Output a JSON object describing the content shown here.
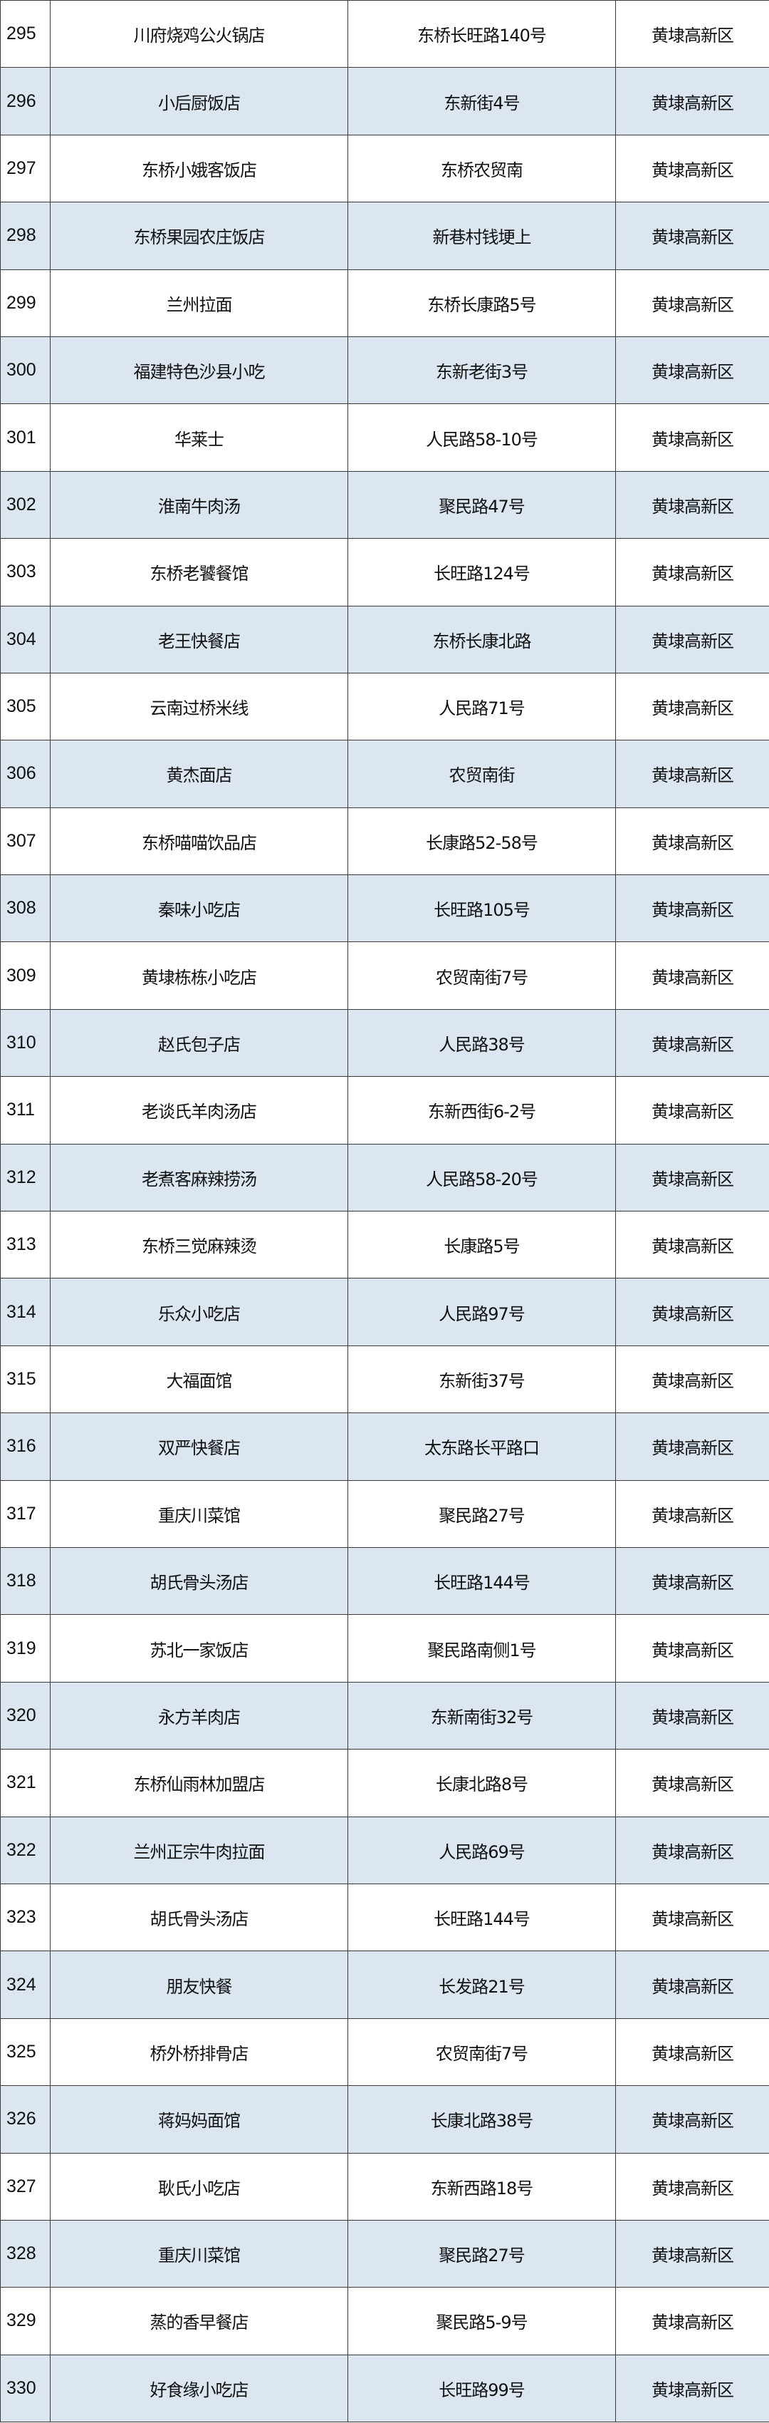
{
  "colors": {
    "stripe": "#dce6f1",
    "border": "#3a3a3a"
  },
  "rows": [
    {
      "no": "295",
      "name": "川府烧鸡公火锅店",
      "address": "东桥长旺路140号",
      "district": "黄埭高新区"
    },
    {
      "no": "296",
      "name": "小后厨饭店",
      "address": "东新街4号",
      "district": "黄埭高新区"
    },
    {
      "no": "297",
      "name": "东桥小娥客饭店",
      "address": "东桥农贸南",
      "district": "黄埭高新区"
    },
    {
      "no": "298",
      "name": "东桥果园农庄饭店",
      "address": "新巷村钱埂上",
      "district": "黄埭高新区"
    },
    {
      "no": "299",
      "name": "兰州拉面",
      "address": "东桥长康路5号",
      "district": "黄埭高新区"
    },
    {
      "no": "300",
      "name": "福建特色沙县小吃",
      "address": "东新老街3号",
      "district": "黄埭高新区"
    },
    {
      "no": "301",
      "name": "华莱士",
      "address": "人民路58-10号",
      "district": "黄埭高新区"
    },
    {
      "no": "302",
      "name": "淮南牛肉汤",
      "address": "聚民路47号",
      "district": "黄埭高新区"
    },
    {
      "no": "303",
      "name": "东桥老饕餐馆",
      "address": "长旺路124号",
      "district": "黄埭高新区"
    },
    {
      "no": "304",
      "name": "老王快餐店",
      "address": "东桥长康北路",
      "district": "黄埭高新区"
    },
    {
      "no": "305",
      "name": "云南过桥米线",
      "address": "人民路71号",
      "district": "黄埭高新区"
    },
    {
      "no": "306",
      "name": "黄杰面店",
      "address": "农贸南街",
      "district": "黄埭高新区"
    },
    {
      "no": "307",
      "name": "东桥喵喵饮品店",
      "address": "长康路52-58号",
      "district": "黄埭高新区"
    },
    {
      "no": "308",
      "name": "秦味小吃店",
      "address": "长旺路105号",
      "district": "黄埭高新区"
    },
    {
      "no": "309",
      "name": "黄埭栋栋小吃店",
      "address": "农贸南街7号",
      "district": "黄埭高新区"
    },
    {
      "no": "310",
      "name": "赵氏包子店",
      "address": "人民路38号",
      "district": "黄埭高新区"
    },
    {
      "no": "311",
      "name": "老谈氏羊肉汤店",
      "address": "东新西街6-2号",
      "district": "黄埭高新区"
    },
    {
      "no": "312",
      "name": "老煮客麻辣捞汤",
      "address": "人民路58-20号",
      "district": "黄埭高新区"
    },
    {
      "no": "313",
      "name": "东桥三觉麻辣烫",
      "address": "长康路5号",
      "district": "黄埭高新区"
    },
    {
      "no": "314",
      "name": "乐众小吃店",
      "address": "人民路97号",
      "district": "黄埭高新区"
    },
    {
      "no": "315",
      "name": "大福面馆",
      "address": "东新街37号",
      "district": "黄埭高新区"
    },
    {
      "no": "316",
      "name": "双严快餐店",
      "address": "太东路长平路口",
      "district": "黄埭高新区"
    },
    {
      "no": "317",
      "name": "重庆川菜馆",
      "address": "聚民路27号",
      "district": "黄埭高新区"
    },
    {
      "no": "318",
      "name": "胡氏骨头汤店",
      "address": "长旺路144号",
      "district": "黄埭高新区"
    },
    {
      "no": "319",
      "name": "苏北一家饭店",
      "address": "聚民路南侧1号",
      "district": "黄埭高新区"
    },
    {
      "no": "320",
      "name": "永方羊肉店",
      "address": "东新南街32号",
      "district": "黄埭高新区"
    },
    {
      "no": "321",
      "name": "东桥仙雨林加盟店",
      "address": "长康北路8号",
      "district": "黄埭高新区"
    },
    {
      "no": "322",
      "name": "兰州正宗牛肉拉面",
      "address": "人民路69号",
      "district": "黄埭高新区"
    },
    {
      "no": "323",
      "name": "胡氏骨头汤店",
      "address": "长旺路144号",
      "district": "黄埭高新区"
    },
    {
      "no": "324",
      "name": "朋友快餐",
      "address": "长发路21号",
      "district": "黄埭高新区"
    },
    {
      "no": "325",
      "name": "桥外桥排骨店",
      "address": "农贸南街7号",
      "district": "黄埭高新区"
    },
    {
      "no": "326",
      "name": "蒋妈妈面馆",
      "address": "长康北路38号",
      "district": "黄埭高新区"
    },
    {
      "no": "327",
      "name": "耿氏小吃店",
      "address": "东新西路18号",
      "district": "黄埭高新区"
    },
    {
      "no": "328",
      "name": "重庆川菜馆",
      "address": "聚民路27号",
      "district": "黄埭高新区"
    },
    {
      "no": "329",
      "name": "蒸的香早餐店",
      "address": "聚民路5-9号",
      "district": "黄埭高新区"
    },
    {
      "no": "330",
      "name": "好食缘小吃店",
      "address": "长旺路99号",
      "district": "黄埭高新区"
    }
  ]
}
